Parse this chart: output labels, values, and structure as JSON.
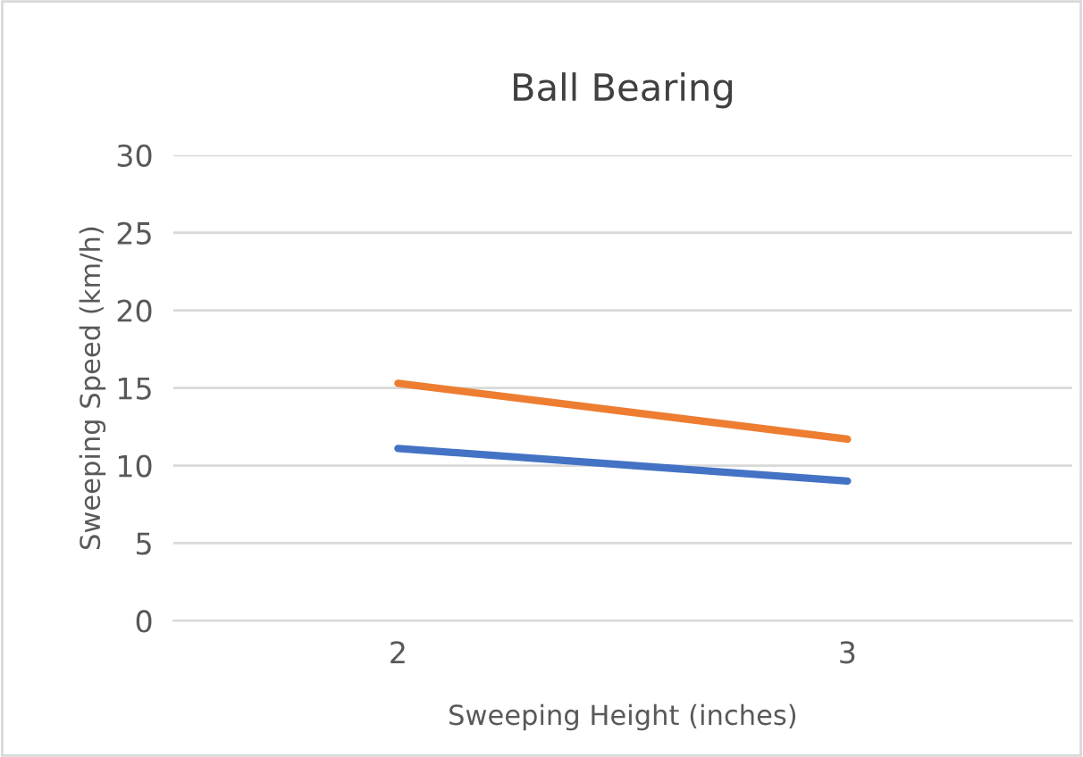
{
  "chart_data": {
    "type": "line",
    "title": "Ball Bearing",
    "xlabel": "Sweeping Height (inches)",
    "ylabel": "Sweeping Speed (km/h)",
    "categories": [
      "2",
      "3"
    ],
    "series": [
      {
        "color": "#4472c4",
        "values": [
          11.1,
          9.0
        ]
      },
      {
        "color": "#ed7d31",
        "values": [
          15.3,
          11.7
        ]
      }
    ],
    "ylim": [
      0,
      30
    ],
    "yticks": [
      0,
      5,
      10,
      15,
      20,
      25,
      30
    ],
    "grid": "y",
    "marker": "none",
    "line_style": "solid"
  }
}
